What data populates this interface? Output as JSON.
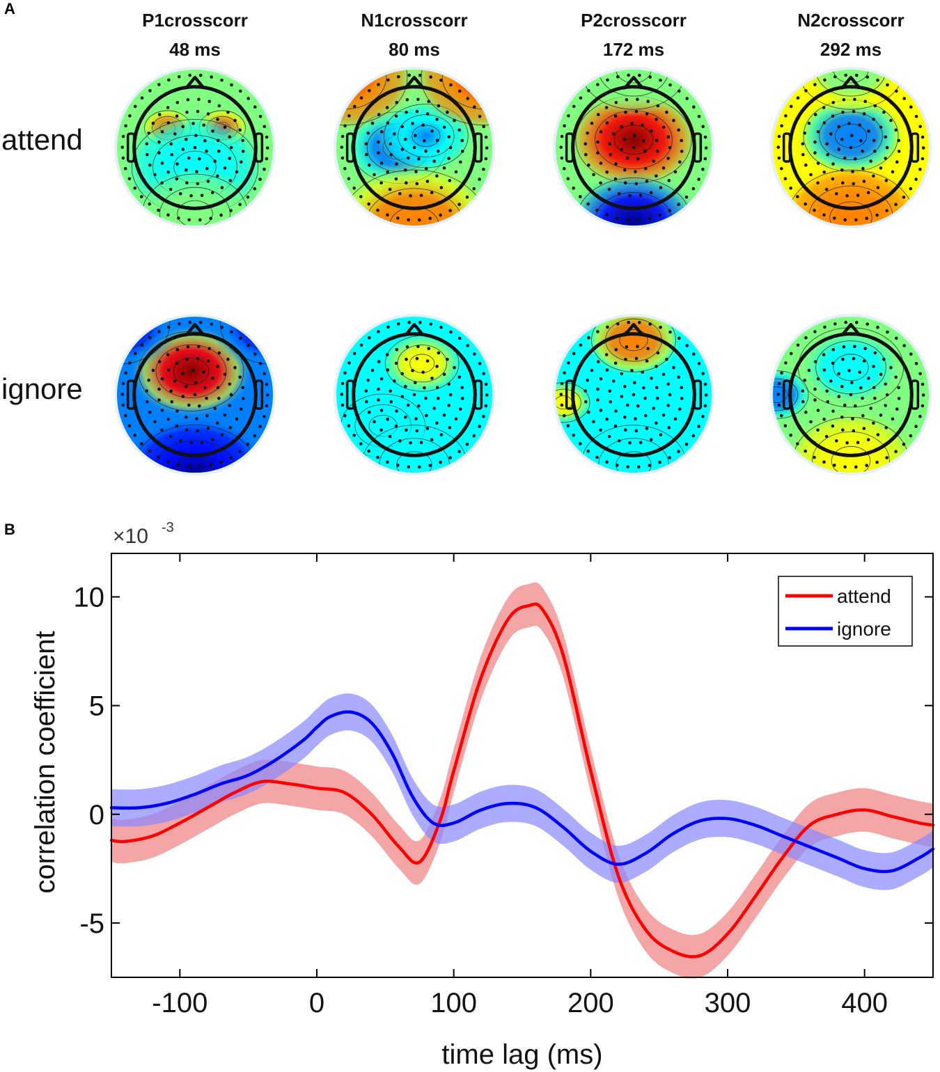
{
  "panels": {
    "a_label": "A",
    "b_label": "B"
  },
  "topomaps": {
    "components": [
      {
        "name": "P1crosscorr",
        "latency": "48 ms"
      },
      {
        "name": "N1crosscorr",
        "latency": "80 ms"
      },
      {
        "name": "P2crosscorr",
        "latency": "172 ms"
      },
      {
        "name": "N2crosscorr",
        "latency": "292 ms"
      }
    ],
    "conditions": [
      "attend",
      "ignore"
    ],
    "colormap": "jet"
  },
  "chart_data": {
    "type": "line",
    "title": "",
    "xlabel": "time lag (ms)",
    "ylabel": "correlation coefficient",
    "y_exponent_label": "×10",
    "y_exponent_power": "-3",
    "xlim": [
      -150,
      450
    ],
    "ylim": [
      -7.5,
      12
    ],
    "xticks": [
      -100,
      0,
      100,
      200,
      300,
      400
    ],
    "yticks": [
      -5,
      0,
      5,
      10
    ],
    "legend_position": "top-right",
    "series": [
      {
        "name": "attend",
        "color": "#ff0000",
        "band_color": "#f08080",
        "x": [
          -150,
          -140,
          -120,
          -100,
          -80,
          -60,
          -40,
          -20,
          0,
          20,
          40,
          60,
          75,
          90,
          100,
          120,
          140,
          155,
          165,
          180,
          200,
          220,
          240,
          260,
          280,
          300,
          320,
          340,
          360,
          380,
          400,
          420,
          440,
          450
        ],
        "y": [
          -1.2,
          -1.25,
          -1.0,
          -0.4,
          0.3,
          1.0,
          1.5,
          1.4,
          1.2,
          1.0,
          0.0,
          -1.5,
          -2.2,
          -0.3,
          2.0,
          6.3,
          9.0,
          9.6,
          9.4,
          7.3,
          2.0,
          -2.8,
          -5.3,
          -6.3,
          -6.5,
          -5.5,
          -3.8,
          -2.0,
          -0.5,
          0.0,
          0.2,
          -0.1,
          -0.4,
          -0.5
        ],
        "band_halfwidth": 1.0
      },
      {
        "name": "ignore",
        "color": "#0000ff",
        "band_color": "#8888ff",
        "x": [
          -150,
          -130,
          -110,
          -90,
          -70,
          -50,
          -30,
          -10,
          0,
          10,
          25,
          40,
          55,
          70,
          85,
          100,
          120,
          140,
          160,
          180,
          200,
          220,
          240,
          260,
          280,
          300,
          320,
          340,
          360,
          380,
          400,
          420,
          440,
          450
        ],
        "y": [
          0.3,
          0.3,
          0.5,
          0.9,
          1.4,
          1.8,
          2.5,
          3.4,
          4.0,
          4.5,
          4.7,
          4.2,
          2.8,
          0.8,
          -0.4,
          -0.4,
          0.2,
          0.5,
          0.3,
          -0.6,
          -1.7,
          -2.3,
          -1.8,
          -0.9,
          -0.3,
          -0.2,
          -0.5,
          -1.0,
          -1.5,
          -2.0,
          -2.5,
          -2.6,
          -2.0,
          -1.6
        ],
        "band_halfwidth": 0.85
      }
    ]
  }
}
